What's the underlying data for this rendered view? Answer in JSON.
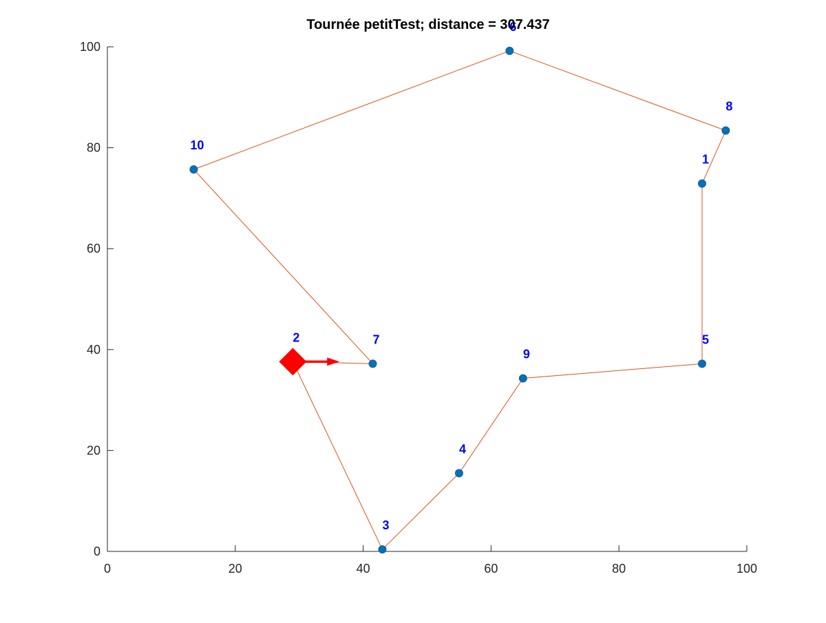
{
  "chart_data": {
    "type": "scatter",
    "title": "Tournée petitTest; distance = 307.437",
    "xlabel": "",
    "ylabel": "",
    "xlim": [
      0,
      100
    ],
    "ylim": [
      0,
      100
    ],
    "x_ticks": [
      0,
      20,
      40,
      60,
      80,
      100
    ],
    "y_ticks": [
      0,
      20,
      40,
      60,
      80,
      100
    ],
    "grid": false,
    "points": [
      {
        "label": "1",
        "x": 93.0,
        "y": 72.9
      },
      {
        "label": "2",
        "x": 29.0,
        "y": 37.6
      },
      {
        "label": "3",
        "x": 43.0,
        "y": 0.4
      },
      {
        "label": "4",
        "x": 55.0,
        "y": 15.5
      },
      {
        "label": "5",
        "x": 93.0,
        "y": 37.2
      },
      {
        "label": "6",
        "x": 62.9,
        "y": 99.2
      },
      {
        "label": "7",
        "x": 41.5,
        "y": 37.2
      },
      {
        "label": "8",
        "x": 96.7,
        "y": 83.4
      },
      {
        "label": "9",
        "x": 65.0,
        "y": 34.3
      },
      {
        "label": "10",
        "x": 13.5,
        "y": 75.7
      }
    ],
    "tour": [
      "2",
      "3",
      "4",
      "9",
      "5",
      "1",
      "8",
      "6",
      "10",
      "7",
      "2"
    ],
    "start_marker": {
      "label": "2",
      "x": 29.0,
      "y": 37.6,
      "shape": "diamond"
    },
    "direction_arrow": {
      "from": [
        29.0,
        37.6
      ],
      "to": [
        36.3,
        37.6
      ]
    },
    "colors": {
      "point": "#0072BD",
      "point_edge": "#1F5A8A",
      "route": "#D95319",
      "label": "#0000FF",
      "start": "#FF0000",
      "axis": "#262626",
      "title": "#000000"
    }
  }
}
